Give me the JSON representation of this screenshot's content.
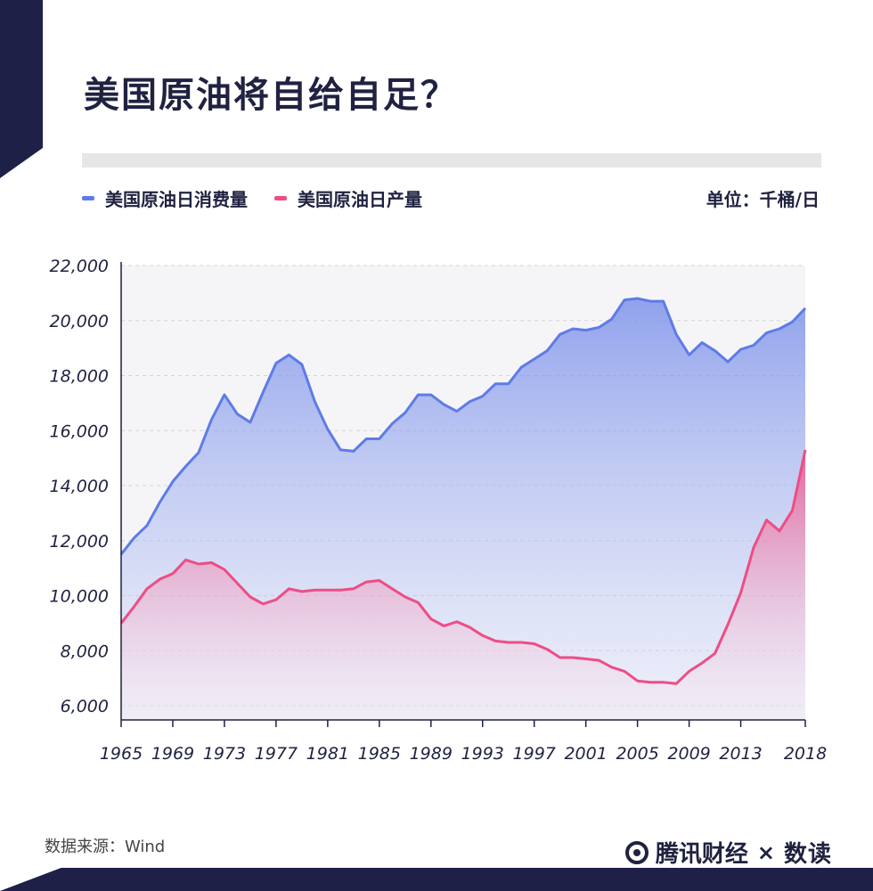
{
  "header": {
    "title": "美国原油将自给自足？"
  },
  "legend": {
    "consumption_label": "美国原油日消费量",
    "production_label": "美国原油日产量",
    "unit": "单位：千桶/日"
  },
  "footer": {
    "source": "数据来源：Wind",
    "brand": "腾讯财经",
    "cross": "×",
    "partner": "数读"
  },
  "colors": {
    "consumption": "#5e7ce6",
    "production": "#ee4d85",
    "dark": "#1e2048"
  },
  "chart_data": {
    "type": "area",
    "x_start": 1965,
    "x_end": 2018,
    "x_ticks": [
      1965,
      1969,
      1973,
      1977,
      1981,
      1985,
      1989,
      1993,
      1997,
      2001,
      2005,
      2009,
      2013,
      2018
    ],
    "y_ticks": [
      6000,
      8000,
      10000,
      12000,
      14000,
      16000,
      18000,
      20000,
      22000
    ],
    "ylim": [
      6000,
      22000
    ],
    "series": [
      {
        "name": "美国原油日消费量",
        "x": [
          1965,
          1966,
          1967,
          1968,
          1969,
          1970,
          1971,
          1972,
          1973,
          1974,
          1975,
          1976,
          1977,
          1978,
          1979,
          1980,
          1981,
          1982,
          1983,
          1984,
          1985,
          1986,
          1987,
          1988,
          1989,
          1990,
          1991,
          1992,
          1993,
          1994,
          1995,
          1996,
          1997,
          1998,
          1999,
          2000,
          2001,
          2002,
          2003,
          2004,
          2005,
          2006,
          2007,
          2008,
          2009,
          2010,
          2011,
          2012,
          2013,
          2014,
          2015,
          2016,
          2017,
          2018
        ],
        "values": [
          11500,
          12100,
          12550,
          13400,
          14150,
          14700,
          15200,
          16400,
          17300,
          16600,
          16300,
          17400,
          18450,
          18750,
          18400,
          17050,
          16050,
          15300,
          15250,
          15700,
          15700,
          16250,
          16650,
          17300,
          17300,
          16950,
          16700,
          17050,
          17250,
          17700,
          17700,
          18300,
          18600,
          18900,
          19500,
          19700,
          19650,
          19750,
          20050,
          20750,
          20800,
          20700,
          20700,
          19500,
          18750,
          19200,
          18900,
          18500,
          18950,
          19100,
          19550,
          19700,
          19950,
          20450
        ]
      },
      {
        "name": "美国原油日产量",
        "x": [
          1965,
          1966,
          1967,
          1968,
          1969,
          1970,
          1971,
          1972,
          1973,
          1974,
          1975,
          1976,
          1977,
          1978,
          1979,
          1980,
          1981,
          1982,
          1983,
          1984,
          1985,
          1986,
          1987,
          1988,
          1989,
          1990,
          1991,
          1992,
          1993,
          1994,
          1995,
          1996,
          1997,
          1998,
          1999,
          2000,
          2001,
          2002,
          2003,
          2004,
          2005,
          2006,
          2007,
          2008,
          2009,
          2010,
          2011,
          2012,
          2013,
          2014,
          2015,
          2016,
          2017,
          2018
        ],
        "values": [
          9000,
          9600,
          10250,
          10600,
          10800,
          11300,
          11150,
          11200,
          10950,
          10450,
          9950,
          9700,
          9850,
          10250,
          10150,
          10200,
          10200,
          10200,
          10250,
          10500,
          10550,
          10250,
          9950,
          9750,
          9150,
          8900,
          9050,
          8850,
          8550,
          8350,
          8300,
          8300,
          8250,
          8050,
          7750,
          7750,
          7700,
          7650,
          7400,
          7250,
          6900,
          6850,
          6850,
          6800,
          7250,
          7550,
          7900,
          8950,
          10100,
          11750,
          12750,
          12350,
          13100,
          15300
        ]
      }
    ]
  }
}
